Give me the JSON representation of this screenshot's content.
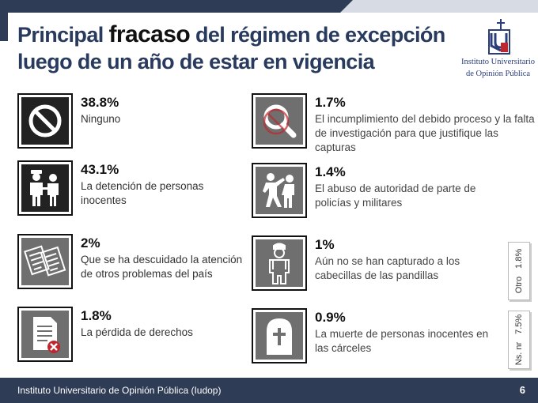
{
  "header": {
    "title_part1": "Principal ",
    "title_emph": "fracaso",
    "title_part2": " del régimen de excepción luego de un año de estar en vigencia"
  },
  "logo": {
    "line1": "Instituto Universitario",
    "line2": "de Opinión Pública",
    "colors": {
      "blue": "#2b3e7a",
      "red": "#c0262d"
    }
  },
  "footer": {
    "text": "Instituto Universitario de Opinión Pública (Iudop)",
    "page_number": "6"
  },
  "chart_data": {
    "type": "table",
    "title": "Principal fracaso del régimen de excepción luego de un año de estar en vigencia",
    "unit": "%",
    "items": [
      {
        "pct": "38.8%",
        "value": 38.8,
        "label": "Ninguno",
        "icon": "prohibited-icon"
      },
      {
        "pct": "43.1%",
        "value": 43.1,
        "label": "La detención de personas inocentes",
        "icon": "arrest-icon"
      },
      {
        "pct": "2%",
        "value": 2,
        "label": "Que se ha descuidado la atención de otros problemas del país",
        "icon": "documents-icon"
      },
      {
        "pct": "1.8%",
        "value": 1.8,
        "label": "La pérdida de derechos",
        "icon": "document-rejected-icon"
      },
      {
        "pct": "1.7%",
        "value": 1.7,
        "label": "El incumplimiento del debido proceso y la falta de investigación para que justifique las capturas",
        "icon": "no-investigation-icon"
      },
      {
        "pct": "1.4%",
        "value": 1.4,
        "label": "El abuso de autoridad de parte de policías y militares",
        "icon": "abuse-icon"
      },
      {
        "pct": "1%",
        "value": 1,
        "label": "Aún no se han capturado a los cabecillas de las pandillas",
        "icon": "gang-leader-icon"
      },
      {
        "pct": "0.9%",
        "value": 0.9,
        "label": "La muerte de personas inocentes en las cárceles",
        "icon": "tombstone-icon"
      }
    ],
    "others": [
      {
        "label": "Otro",
        "pct": "1.8%",
        "value": 1.8
      },
      {
        "label": "Ns. nr",
        "pct": "7.5%",
        "value": 7.5
      }
    ]
  }
}
